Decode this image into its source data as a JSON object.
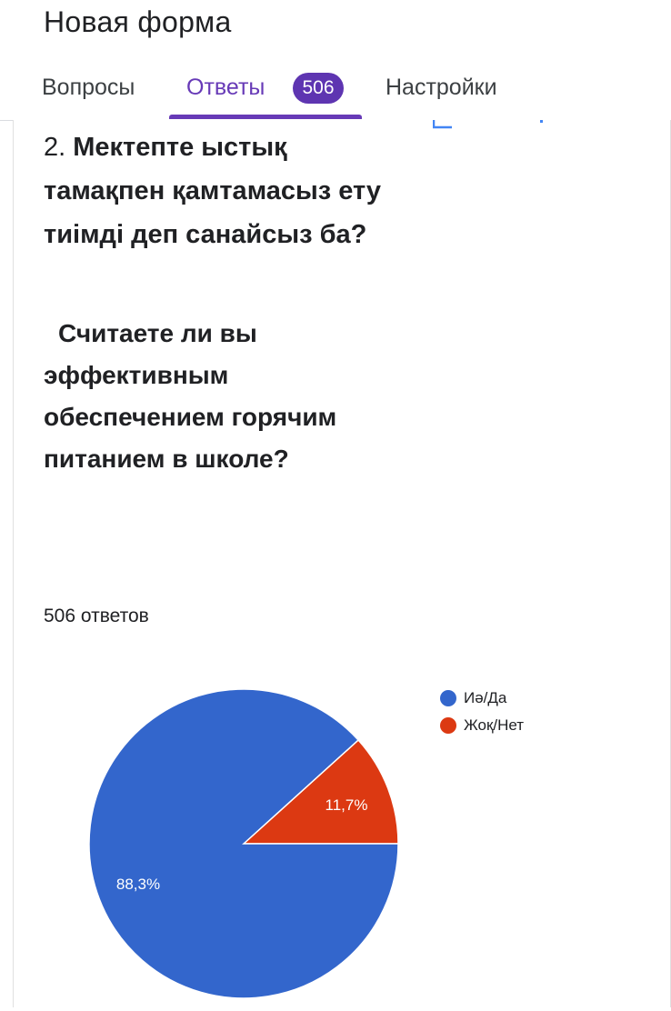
{
  "header": {
    "form_title": "Новая форма",
    "tabs": [
      {
        "label": "Вопросы",
        "active": false
      },
      {
        "label": "Ответы",
        "active": true
      },
      {
        "label": "Настройки",
        "active": false
      }
    ],
    "responses_badge": "506",
    "accent_color": "#673ab7"
  },
  "question": {
    "number": "2.",
    "text_kk": "Мектепте ыстық тамақпен қамтамасыз ету тиімді деп санайсыз ба?",
    "text_ru": "Считаете ли вы эффективным обеспечением горячим питанием в школе?",
    "response_count": "506 ответов"
  },
  "chart_data": {
    "type": "pie",
    "slices": [
      {
        "label": "Иә/Да",
        "value": 88.3,
        "value_label": "88,3%",
        "color": "#3366cc"
      },
      {
        "label": "Жоқ/Нет",
        "value": 11.7,
        "value_label": "11,7%",
        "color": "#dc3912"
      }
    ],
    "legend_position": "right"
  }
}
